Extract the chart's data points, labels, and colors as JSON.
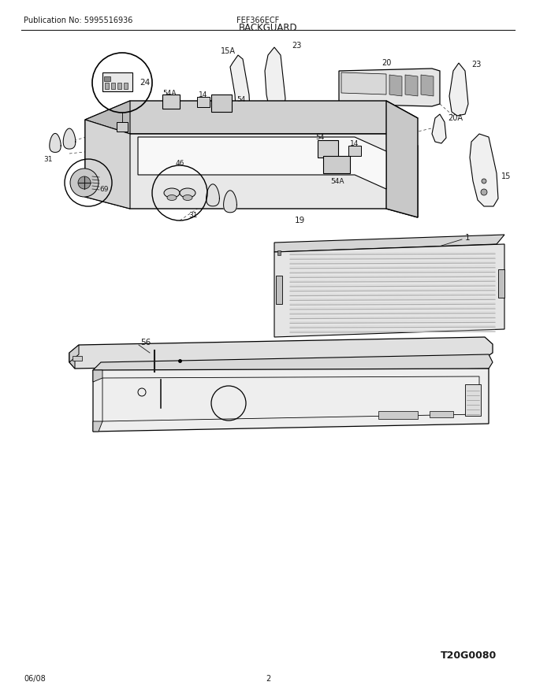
{
  "pub_no": "Publication No: 5995516936",
  "model": "FEF366ECF",
  "title": "BACKGUARD",
  "date": "06/08",
  "page": "2",
  "diagram_id": "T20G0080",
  "bg_color": "#ffffff",
  "lc": "#000000",
  "fig_width": 6.8,
  "fig_height": 8.8,
  "dpi": 100
}
